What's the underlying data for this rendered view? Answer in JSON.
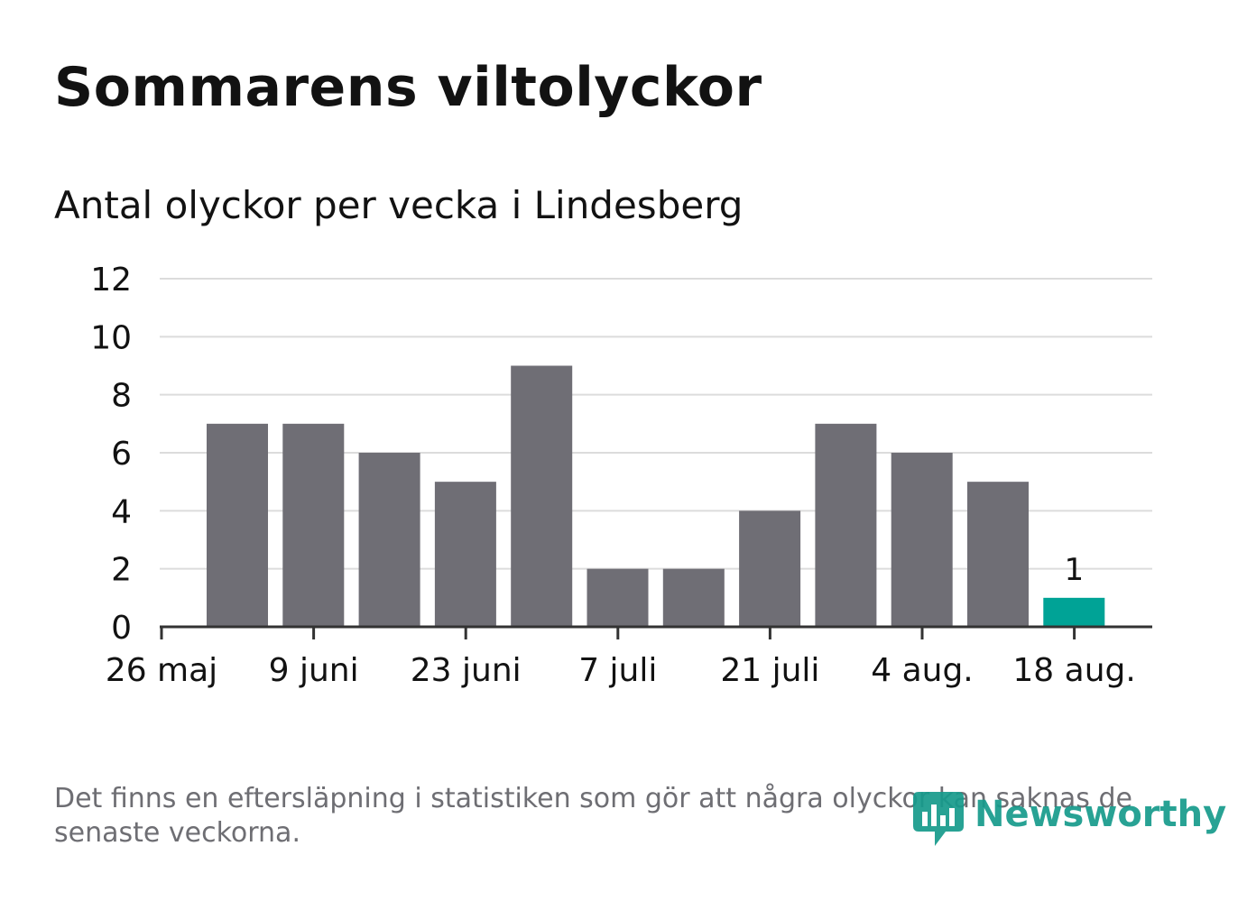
{
  "title": "Sommarens viltolyckor",
  "subtitle": "Antal olyckor per vecka i Lindesberg",
  "footnote": "Det finns en eftersläpning i statistiken som gör att några olyckor kan saknas de senaste veckorna.",
  "logo": {
    "text": "Newsworthy",
    "icon": "newsworthy-logo-icon"
  },
  "colors": {
    "bar": "#6f6e75",
    "highlight": "#00a396",
    "grid": "#dcdcdc",
    "axis": "#333333",
    "text": "#121212",
    "muted": "#6e6e73"
  },
  "chart_data": {
    "type": "bar",
    "title": "Sommarens viltolyckor",
    "subtitle": "Antal olyckor per vecka i Lindesberg",
    "xlabel": "",
    "ylabel": "",
    "ylim": [
      0,
      12
    ],
    "yticks": [
      0,
      2,
      4,
      6,
      8,
      10,
      12
    ],
    "xtick_labels": [
      "26 maj",
      "9 juni",
      "23 juni",
      "7 juli",
      "21 juli",
      "4 aug.",
      "18 aug."
    ],
    "values": [
      7,
      7,
      6,
      5,
      9,
      2,
      2,
      4,
      7,
      6,
      5,
      1
    ],
    "highlight_index": 11,
    "data_labels": [
      {
        "index": 11,
        "text": "1"
      }
    ],
    "grid": true,
    "legend": "none"
  }
}
